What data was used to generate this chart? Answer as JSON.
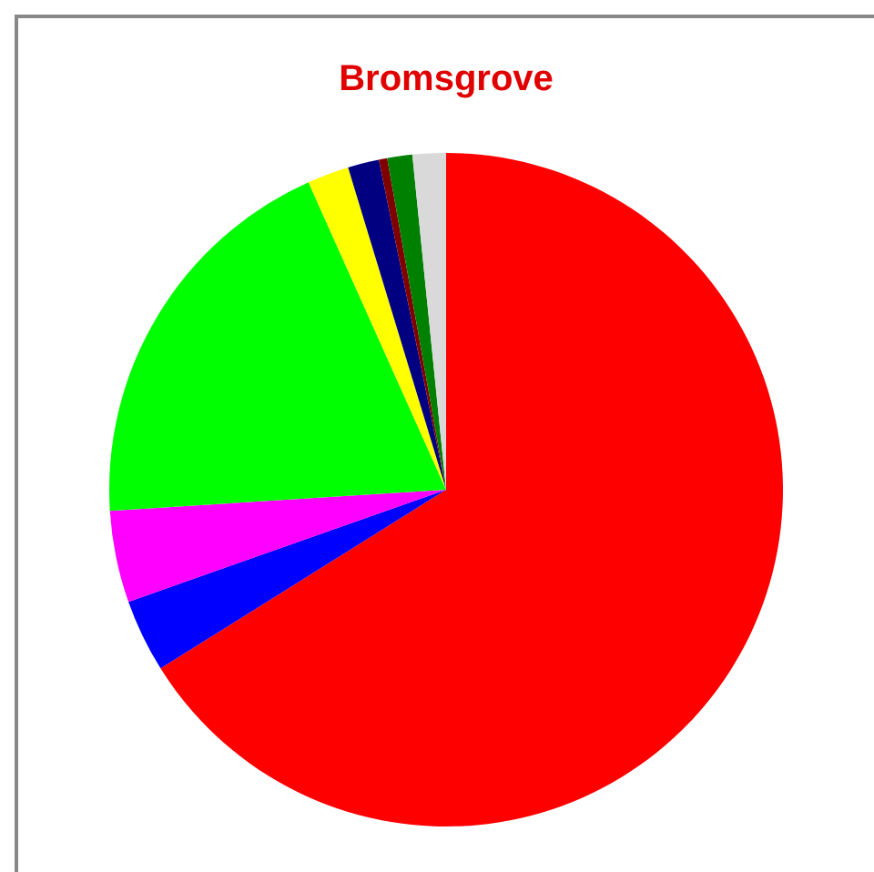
{
  "chart_data": {
    "type": "pie",
    "title": "Bromsgrove",
    "categories": [
      null,
      null,
      null,
      null,
      null,
      null,
      null,
      null,
      null
    ],
    "values": [
      66.1,
      3.5,
      4.4,
      19.3,
      2.0,
      1.5,
      0.4,
      1.2,
      1.6
    ],
    "colors": [
      "#ff0000",
      "#0000ff",
      "#ff00ff",
      "#00ff00",
      "#ffff00",
      "#000080",
      "#800000",
      "#008000",
      "#d9d9d9"
    ],
    "legend": false
  }
}
